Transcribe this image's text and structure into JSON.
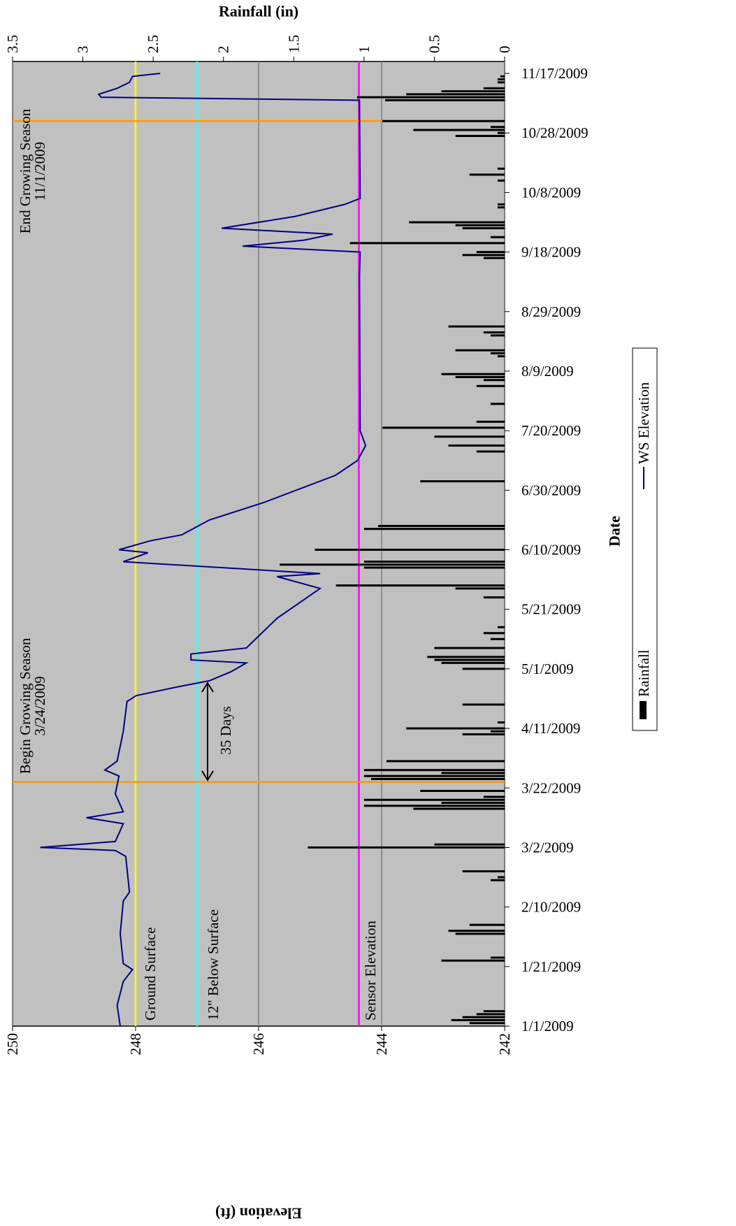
{
  "chart_data": {
    "type": "bar-line",
    "x_label": "Date",
    "y_label": "Elevation (ft)",
    "y2_label": "Rainfall (in)",
    "xlim": [
      "1/1/2009",
      "11/21/2009"
    ],
    "xticks": [
      "1/1/2009",
      "1/21/2009",
      "2/10/2009",
      "3/2/2009",
      "3/22/2009",
      "4/11/2009",
      "5/1/2009",
      "5/21/2009",
      "6/10/2009",
      "6/30/2009",
      "7/20/2009",
      "8/9/2009",
      "8/29/2009",
      "9/18/2009",
      "10/8/2009",
      "10/28/2009",
      "11/17/2009"
    ],
    "ylim": [
      242,
      250
    ],
    "yticks": [
      242,
      244,
      246,
      248,
      250
    ],
    "y2lim": [
      0,
      3.5
    ],
    "y2ticks": [
      0,
      0.5,
      1,
      1.5,
      2,
      2.5,
      3,
      3.5
    ],
    "grid": true,
    "background": "#c0c0c0",
    "series": [
      {
        "name": "Rainfall",
        "type": "bar",
        "axis": "y2",
        "color": "#000000",
        "x": [
          "1/2/2009",
          "1/3/2009",
          "1/4/2009",
          "1/5/2009",
          "1/6/2009",
          "1/23/2009",
          "1/24/2009",
          "2/1/2009",
          "2/2/2009",
          "2/4/2009",
          "2/19/2009",
          "2/20/2009",
          "2/22/2009",
          "3/2/2009",
          "3/3/2009",
          "3/15/2009",
          "3/16/2009",
          "3/17/2009",
          "3/18/2009",
          "3/19/2009",
          "3/21/2009",
          "3/25/2009",
          "3/26/2009",
          "3/27/2009",
          "3/28/2009",
          "3/31/2009",
          "4/9/2009",
          "4/10/2009",
          "4/11/2009",
          "4/13/2009",
          "4/19/2009",
          "5/1/2009",
          "5/3/2009",
          "5/4/2009",
          "5/5/2009",
          "5/8/2009",
          "5/11/2009",
          "5/13/2009",
          "5/15/2009",
          "5/25/2009",
          "5/28/2009",
          "5/29/2009",
          "6/4/2009",
          "6/5/2009",
          "6/6/2009",
          "6/10/2009",
          "6/17/2009",
          "6/18/2009",
          "7/3/2009",
          "7/13/2009",
          "7/15/2009",
          "7/18/2009",
          "7/21/2009",
          "7/23/2009",
          "7/29/2009",
          "8/4/2009",
          "8/6/2009",
          "8/7/2009",
          "8/8/2009",
          "8/14/2009",
          "8/15/2009",
          "8/16/2009",
          "8/21/2009",
          "8/22/2009",
          "8/24/2009",
          "9/16/2009",
          "9/17/2009",
          "9/18/2009",
          "9/21/2009",
          "9/23/2009",
          "9/26/2009",
          "9/27/2009",
          "9/28/2009",
          "10/3/2009",
          "10/4/2009",
          "10/12/2009",
          "10/14/2009",
          "10/16/2009",
          "10/27/2009",
          "10/28/2009",
          "10/29/2009",
          "10/30/2009",
          "11/1/2009",
          "11/8/2009",
          "11/9/2009",
          "11/10/2009",
          "11/11/2009",
          "11/12/2009",
          "11/14/2009",
          "11/15/2009",
          "11/16/2009"
        ],
        "values": [
          0.25,
          0.38,
          0.3,
          0.2,
          0.15,
          0.45,
          0.1,
          0.35,
          0.4,
          0.25,
          0.1,
          0.05,
          0.3,
          1.4,
          0.5,
          0.65,
          1.0,
          0.45,
          1.0,
          0.15,
          0.6,
          0.95,
          1.0,
          0.45,
          1.0,
          0.84,
          0.3,
          0.1,
          0.7,
          0.05,
          0.3,
          0.3,
          0.45,
          0.5,
          0.55,
          0.5,
          0.1,
          0.15,
          0.05,
          0.15,
          0.35,
          1.2,
          1.0,
          1.6,
          1.0,
          1.35,
          1.0,
          0.9,
          0.6,
          0.2,
          0.4,
          0.5,
          0.87,
          0.2,
          0.1,
          0.2,
          0.15,
          0.35,
          0.45,
          0.05,
          0.1,
          0.35,
          0.1,
          0.15,
          0.4,
          0.15,
          0.3,
          0.2,
          1.1,
          0.1,
          0.3,
          0.35,
          0.68,
          0.05,
          0.05,
          0.05,
          0.25,
          0.05,
          0.35,
          0.05,
          0.65,
          0.1,
          0.87,
          0.85,
          1.05,
          0.7,
          0.45,
          0.15,
          0.05,
          0.05,
          0.03
        ]
      },
      {
        "name": "WS Elevation",
        "type": "line",
        "axis": "y",
        "color": "#000080",
        "x": [
          "1/1/2009",
          "1/8/2009",
          "1/16/2009",
          "1/20/2009",
          "1/22/2009",
          "2/1/2009",
          "2/12/2009",
          "2/15/2009",
          "2/27/2009",
          "3/1/2009",
          "3/2/2009",
          "3/4/2009",
          "3/10/2009",
          "3/12/2009",
          "3/14/2009",
          "3/20/2009",
          "3/26/2009",
          "3/28/2009",
          "3/31/2009",
          "4/10/2009",
          "4/20/2009",
          "4/22/2009",
          "4/25/2009",
          "4/27/2009",
          "4/30/2009",
          "5/3/2009",
          "5/4/2009",
          "5/6/2009",
          "5/8/2009",
          "5/18/2009",
          "5/28/2009",
          "6/1/2009",
          "6/2/2009",
          "6/6/2009",
          "6/9/2009",
          "6/10/2009",
          "6/13/2009",
          "6/15/2009",
          "6/20/2009",
          "6/26/2009",
          "7/5/2009",
          "7/10/2009",
          "7/15/2009",
          "7/20/2009",
          "9/10/2009",
          "9/18/2009",
          "9/20/2009",
          "9/22/2009",
          "9/24/2009",
          "9/26/2009",
          "9/30/2009",
          "10/4/2009",
          "10/6/2009",
          "11/8/2009",
          "11/9/2009",
          "11/10/2009",
          "11/12/2009",
          "11/14/2009",
          "11/16/2009",
          "11/17/2009"
        ],
        "values": [
          248.25,
          248.3,
          248.2,
          248.05,
          248.2,
          248.25,
          248.2,
          248.1,
          248.16,
          248.33,
          249.55,
          248.33,
          248.2,
          248.8,
          248.2,
          248.33,
          248.27,
          248.5,
          248.3,
          248.2,
          248.14,
          247.99,
          247.3,
          246.8,
          246.45,
          246.2,
          247.1,
          247.1,
          246.2,
          245.7,
          245.0,
          245.7,
          245.0,
          248.2,
          247.8,
          248.27,
          247.76,
          247.25,
          246.8,
          245.9,
          244.75,
          244.39,
          244.26,
          244.35,
          244.36,
          244.35,
          246.26,
          245.26,
          244.8,
          246.6,
          245.4,
          244.6,
          244.35,
          244.36,
          248.56,
          248.6,
          248.3,
          248.1,
          248.05,
          247.6
        ]
      }
    ],
    "hlines": [
      {
        "label": "Ground Surface",
        "value": 248,
        "color": "#ffff00"
      },
      {
        "label": "12\" Below Surface",
        "value": 247,
        "color": "#33ffff"
      },
      {
        "label": "Sensor Elevation",
        "value": 244.37,
        "color": "#ff00ff"
      }
    ],
    "vlines": [
      {
        "label": "Begin Growing Season",
        "date": "3/24/2009",
        "color": "#ff9900"
      },
      {
        "label": "End Growing Season",
        "date": "11/1/2009",
        "color": "#ff9900"
      }
    ],
    "annotations": [
      {
        "text": "35 Days"
      }
    ]
  }
}
